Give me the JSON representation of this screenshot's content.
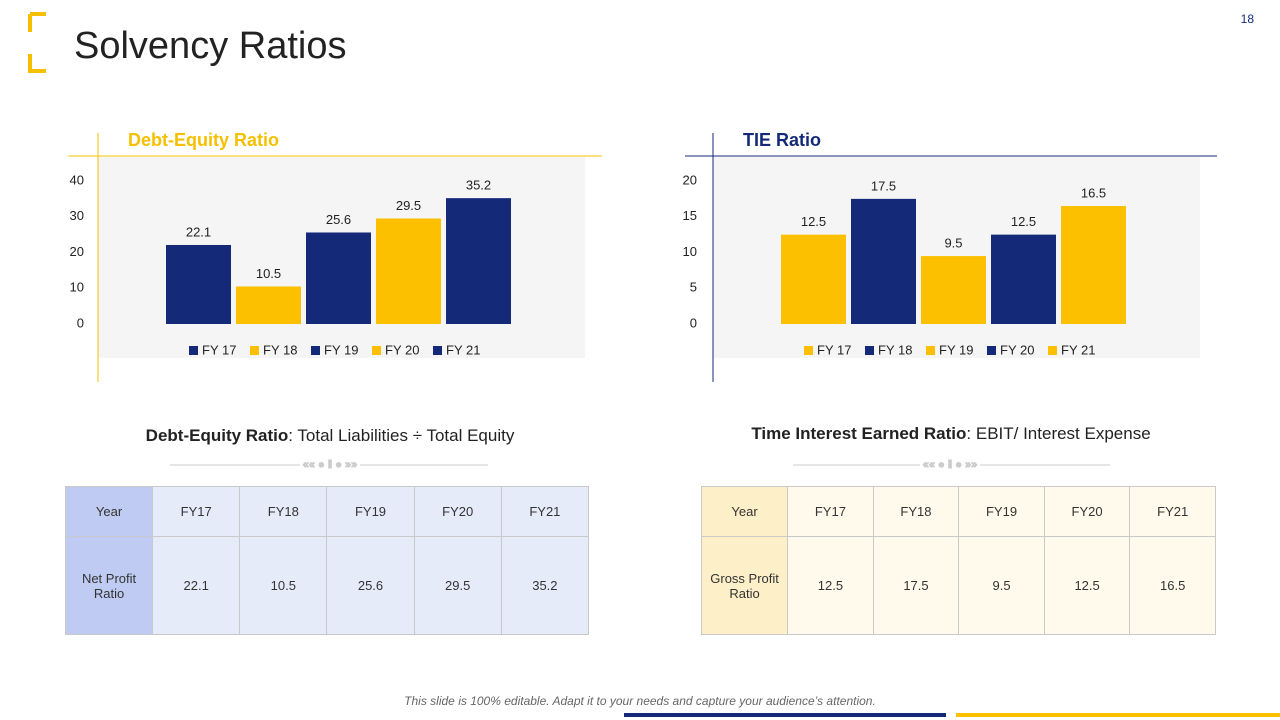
{
  "title": "Solvency Ratios",
  "page_number": "18",
  "chart_data": [
    {
      "type": "bar",
      "title": "Debt-Equity Ratio",
      "title_color": "#f5c000",
      "categories": [
        "FY 17",
        "FY 18",
        "FY 19",
        "FY 20",
        "FY 21"
      ],
      "values": [
        22.1,
        10.5,
        25.6,
        29.5,
        35.2
      ],
      "colors": [
        "#142a78",
        "#fcc000",
        "#142a78",
        "#fcc000",
        "#142a78"
      ],
      "ylim": [
        0,
        40
      ],
      "yticks": [
        0,
        10,
        20,
        30,
        40
      ],
      "legend": "bottom"
    },
    {
      "type": "bar",
      "title": "TIE Ratio",
      "title_color": "#142a78",
      "categories": [
        "FY 17",
        "FY 18",
        "FY 19",
        "FY 20",
        "FY 21"
      ],
      "values": [
        12.5,
        17.5,
        9.5,
        12.5,
        16.5
      ],
      "colors": [
        "#fcc000",
        "#142a78",
        "#fcc000",
        "#142a78",
        "#fcc000"
      ],
      "ylim": [
        0,
        20
      ],
      "yticks": [
        0,
        5,
        10,
        15,
        20
      ],
      "legend": "bottom"
    }
  ],
  "formulas": [
    {
      "name": "Debt-Equity Ratio",
      "text": ": Total Liabilities ÷ Total Equity"
    },
    {
      "name": "Time Interest Earned Ratio",
      "text": ": EBIT/ Interest Expense"
    }
  ],
  "tables": [
    {
      "header": [
        "Year",
        "FY17",
        "FY18",
        "FY19",
        "FY20",
        "FY21"
      ],
      "rows": [
        [
          "Net Profit Ratio",
          "22.1",
          "10.5",
          "25.6",
          "29.5",
          "35.2"
        ]
      ]
    },
    {
      "header": [
        "Year",
        "FY17",
        "FY18",
        "FY19",
        "FY20",
        "FY21"
      ],
      "rows": [
        [
          "Gross Profit Ratio",
          "12.5",
          "17.5",
          "9.5",
          "12.5",
          "16.5"
        ]
      ]
    }
  ],
  "footer": "This slide is 100% editable. Adapt it to your needs and capture your audience’s attention."
}
